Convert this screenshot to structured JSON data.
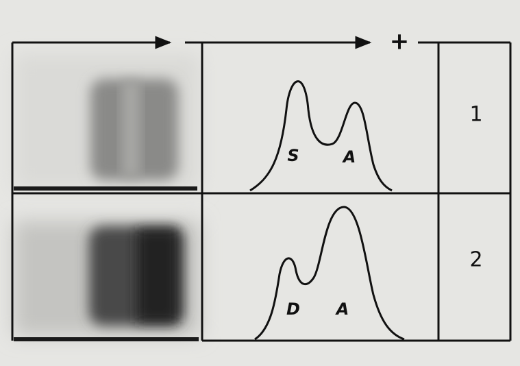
{
  "header": {
    "sign": "+"
  },
  "rows": [
    {
      "peaks": [
        "S",
        "A"
      ],
      "number": "1"
    },
    {
      "peaks": [
        "D",
        "A"
      ],
      "number": "2"
    }
  ]
}
